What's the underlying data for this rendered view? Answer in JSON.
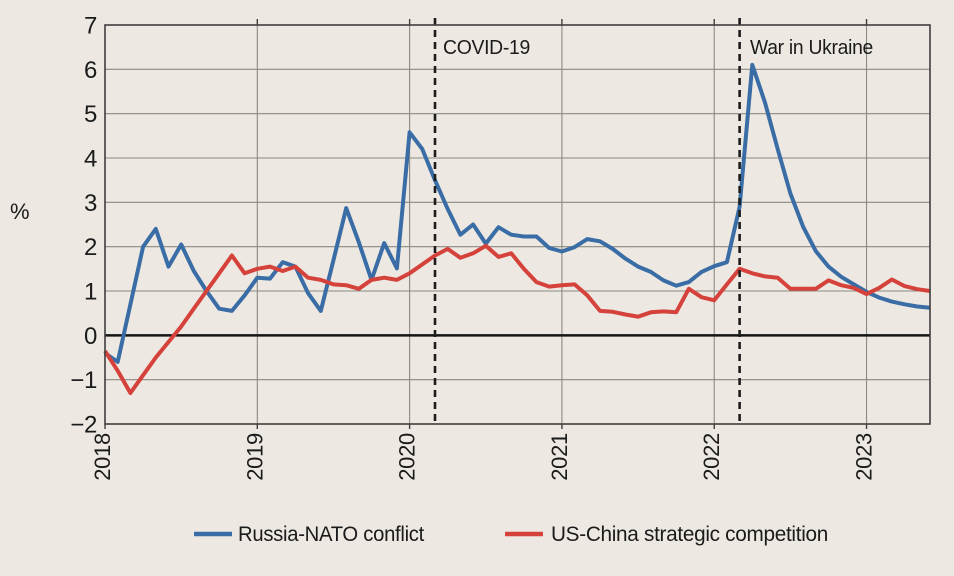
{
  "chart_data": {
    "type": "line",
    "ylabel": "%",
    "ylim": [
      -2,
      7
    ],
    "yticks": [
      7,
      6,
      5,
      4,
      3,
      2,
      1,
      0,
      -1,
      -2
    ],
    "x_start": "2018-01",
    "x_end": "2023-06",
    "frequency": "monthly",
    "xticks": [
      "2018",
      "2019",
      "2020",
      "2021",
      "2022",
      "2023"
    ],
    "grid": true,
    "legend_position": "bottom",
    "annotations": [
      {
        "label": "COVID-19",
        "month": "2020-03"
      },
      {
        "label": "War in Ukraine",
        "month": "2022-03"
      }
    ],
    "series": [
      {
        "name": "Russia-NATO conflict",
        "color": "#3A6DA6",
        "values": [
          -0.4,
          -0.6,
          0.7,
          2.0,
          2.4,
          1.55,
          2.05,
          1.45,
          1.0,
          0.6,
          0.55,
          0.9,
          1.3,
          1.28,
          1.65,
          1.55,
          0.95,
          0.55,
          1.7,
          2.87,
          2.1,
          1.25,
          2.08,
          1.51,
          4.58,
          4.2,
          3.5,
          2.85,
          2.27,
          2.5,
          2.07,
          2.44,
          2.27,
          2.23,
          2.23,
          1.97,
          1.89,
          1.99,
          2.17,
          2.12,
          1.95,
          1.73,
          1.55,
          1.43,
          1.24,
          1.12,
          1.2,
          1.43,
          1.56,
          1.65,
          2.9,
          6.1,
          5.25,
          4.2,
          3.2,
          2.45,
          1.9,
          1.55,
          1.32,
          1.15,
          0.98,
          0.85,
          0.76,
          0.7,
          0.65,
          0.62
        ]
      },
      {
        "name": "US-China strategic competition",
        "color": "#D5423B",
        "values": [
          -0.35,
          -0.8,
          -1.3,
          -0.9,
          -0.5,
          -0.15,
          0.2,
          0.6,
          1.0,
          1.4,
          1.8,
          1.4,
          1.5,
          1.55,
          1.45,
          1.55,
          1.3,
          1.25,
          1.15,
          1.13,
          1.05,
          1.25,
          1.3,
          1.25,
          1.4,
          1.6,
          1.8,
          1.95,
          1.75,
          1.85,
          2.02,
          1.77,
          1.85,
          1.5,
          1.2,
          1.1,
          1.13,
          1.15,
          0.9,
          0.55,
          0.53,
          0.47,
          0.42,
          0.52,
          0.54,
          0.52,
          1.05,
          0.86,
          0.79,
          1.15,
          1.5,
          1.4,
          1.33,
          1.3,
          1.05,
          1.05,
          1.05,
          1.24,
          1.13,
          1.07,
          0.93,
          1.07,
          1.26,
          1.11,
          1.04,
          1.0
        ]
      }
    ],
    "colors": {
      "background": "#EDE9E2",
      "gridline": "#8B8983",
      "axis_border": "#3F3F3D",
      "zero_line": "#141414",
      "annotation_line": "#1C1C1C",
      "text": "#1B1B1B"
    }
  }
}
